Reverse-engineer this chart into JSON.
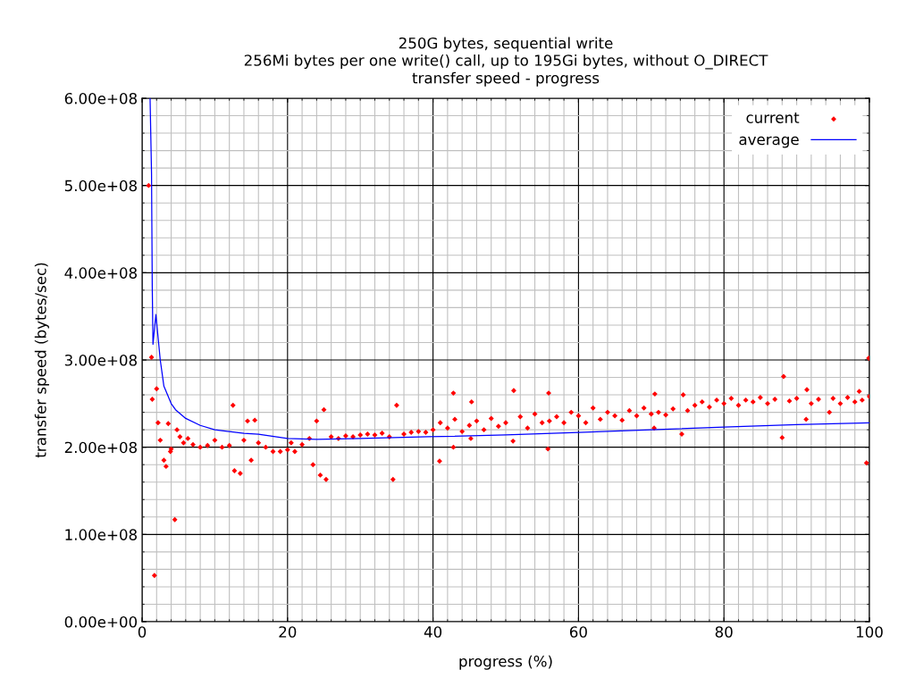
{
  "chart_data": {
    "type": "scatter",
    "title": "250G bytes, sequential write\n256Mi bytes per one write() call, up to 195Gi bytes, without O_DIRECT\ntransfer speed - progress",
    "xlabel": "progress (%)",
    "ylabel": "transfer speed (bytes/sec)",
    "xlim": [
      0,
      100
    ],
    "xticks": [
      0,
      20,
      40,
      60,
      80,
      100
    ],
    "ylim": [
      0,
      600000000
    ],
    "yticks": [
      {
        "value": 0,
        "label": "0.00e+00"
      },
      {
        "value": 100000000,
        "label": "1.00e+08"
      },
      {
        "value": 200000000,
        "label": "2.00e+08"
      },
      {
        "value": 300000000,
        "label": "3.00e+08"
      },
      {
        "value": 400000000,
        "label": "4.00e+08"
      },
      {
        "value": 500000000,
        "label": "5.00e+08"
      },
      {
        "value": 600000000,
        "label": "6.00e+08"
      }
    ],
    "grid": true,
    "legend": "top right",
    "series": [
      {
        "name": "current",
        "marker": "diamond",
        "color": "#ff0000",
        "x": [
          0.9,
          1.3,
          1.4,
          1.7,
          2.0,
          2.2,
          2.5,
          3.0,
          3.3,
          3.6,
          3.9,
          4.0,
          4.5,
          4.8,
          5.2,
          5.7,
          6.3,
          7,
          8,
          9,
          10,
          11,
          12,
          12.5,
          12.7,
          13.5,
          14,
          14.5,
          15,
          15.5,
          16,
          17,
          18,
          19,
          20,
          20.5,
          21,
          22,
          23,
          23.5,
          24,
          24.5,
          25,
          25.3,
          26,
          27,
          28,
          29,
          30,
          31,
          32,
          33,
          34,
          34.5,
          35,
          36,
          37,
          38,
          39,
          40,
          40.9,
          41,
          42,
          42.8,
          42.8,
          43,
          44,
          45,
          45.2,
          45.3,
          46,
          47,
          48,
          49,
          50,
          51.0,
          51.1,
          52,
          53,
          54,
          55,
          55.8,
          55.9,
          56,
          57,
          58,
          59,
          60,
          61,
          62,
          63,
          64,
          65,
          66,
          67,
          68,
          69,
          70,
          70.4,
          70.5,
          71,
          72,
          73,
          74.2,
          74.4,
          75,
          76,
          77,
          78,
          79,
          80,
          81,
          82,
          83,
          84,
          85,
          86,
          87,
          88.0,
          88.2,
          89,
          90,
          91.3,
          91.4,
          92,
          93,
          94.5,
          95,
          96,
          97,
          98,
          98.6,
          99,
          99.6,
          99.9,
          100
        ],
        "values": [
          500000000,
          303000000,
          255000000,
          53000000,
          267000000,
          228000000,
          208000000,
          185000000,
          178000000,
          227000000,
          195000000,
          198000000,
          117000000,
          220000000,
          212000000,
          205000000,
          210000000,
          203000000,
          200000000,
          202000000,
          208000000,
          200000000,
          202000000,
          248000000,
          173000000,
          170000000,
          208000000,
          230000000,
          185000000,
          231000000,
          205000000,
          200000000,
          195000000,
          195000000,
          197000000,
          205000000,
          195000000,
          203000000,
          210000000,
          180000000,
          230000000,
          168000000,
          243000000,
          163000000,
          212000000,
          210000000,
          213000000,
          212000000,
          214000000,
          215000000,
          214000000,
          216000000,
          212000000,
          163000000,
          248000000,
          215000000,
          217000000,
          218000000,
          217000000,
          220000000,
          184000000,
          228000000,
          222000000,
          262000000,
          200000000,
          232000000,
          218000000,
          225000000,
          210000000,
          252000000,
          230000000,
          220000000,
          233000000,
          224000000,
          228000000,
          207000000,
          265000000,
          235000000,
          222000000,
          238000000,
          228000000,
          198000000,
          262000000,
          230000000,
          235000000,
          228000000,
          240000000,
          236000000,
          228000000,
          245000000,
          232000000,
          240000000,
          236000000,
          231000000,
          242000000,
          236000000,
          245000000,
          238000000,
          222000000,
          261000000,
          240000000,
          237000000,
          244000000,
          215000000,
          260000000,
          242000000,
          248000000,
          252000000,
          246000000,
          254000000,
          250000000,
          256000000,
          248000000,
          254000000,
          252000000,
          257000000,
          250000000,
          255000000,
          211000000,
          281000000,
          253000000,
          256000000,
          232000000,
          266000000,
          250000000,
          255000000,
          240000000,
          256000000,
          250000000,
          257000000,
          252000000,
          264000000,
          254000000,
          182000000,
          302000000,
          258000000
        ]
      },
      {
        "name": "average",
        "type": "line",
        "marker": "none",
        "line_style": "solid",
        "color": "#0000ff",
        "x": [
          1.1,
          1.3,
          1.4,
          1.5,
          1.9,
          2.5,
          3.0,
          4.0,
          4.6,
          6,
          8,
          10,
          12,
          14,
          16,
          20,
          24,
          30,
          39.4,
          50,
          60,
          70,
          80,
          90,
          100
        ],
        "values": [
          600000000,
          514000000,
          384000000,
          318000000,
          352000000,
          300000000,
          270000000,
          250000000,
          243000000,
          233000000,
          225000000,
          220000000,
          218000000,
          216000000,
          215000000,
          210000000,
          209000000,
          210000000,
          212000000,
          214000000,
          217000000,
          220000000,
          223000000,
          226000000,
          228000000
        ]
      }
    ]
  }
}
